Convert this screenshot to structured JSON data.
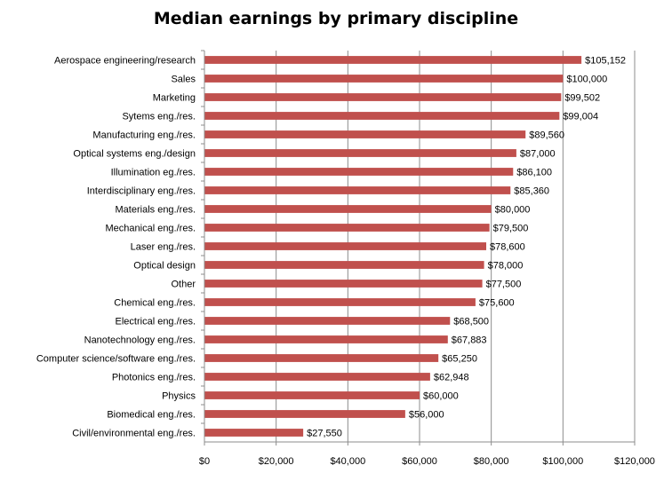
{
  "chart_data": {
    "type": "bar",
    "orientation": "horizontal",
    "title": "Median earnings by primary discipline",
    "xlabel": "",
    "ylabel": "",
    "xlim": [
      0,
      120000
    ],
    "x_ticks": [
      "$0",
      "$20,000",
      "$40,000",
      "$60,000",
      "$80,000",
      "$100,000",
      "$120,000"
    ],
    "grid": true,
    "legend": "none",
    "bar_color": "#c0504d",
    "categories": [
      "Aerospace engineering/research",
      "Sales",
      "Marketing",
      "Sytems eng./res.",
      "Manufacturing eng./res.",
      "Optical systems  eng./design",
      "Illumination eg./res.",
      "Interdisciplinary eng./res.",
      "Materials eng./res.",
      "Mechanical eng./res.",
      "Laser eng./res.",
      "Optical design",
      "Other",
      "Chemical eng./res.",
      "Electrical eng./res.",
      "Nanotechnology eng./res.",
      "Computer science/software eng./res.",
      "Photonics eng./res.",
      "Physics",
      "Biomedical eng./res.",
      "Civil/environmental eng./res."
    ],
    "values": [
      105152,
      100000,
      99502,
      99004,
      89560,
      87000,
      86100,
      85360,
      80000,
      79500,
      78600,
      78000,
      77500,
      75600,
      68500,
      67883,
      65250,
      62948,
      60000,
      56000,
      27550
    ],
    "value_labels": [
      "$105,152",
      "$100,000",
      "$99,502",
      "$99,004",
      "$89,560",
      "$87,000",
      "$86,100",
      "$85,360",
      "$80,000",
      "$79,500",
      "$78,600",
      "$78,000",
      "$77,500",
      "$75,600",
      "$68,500",
      "$67,883",
      "$65,250",
      "$62,948",
      "$60,000",
      "$56,000",
      "$27,550"
    ]
  }
}
